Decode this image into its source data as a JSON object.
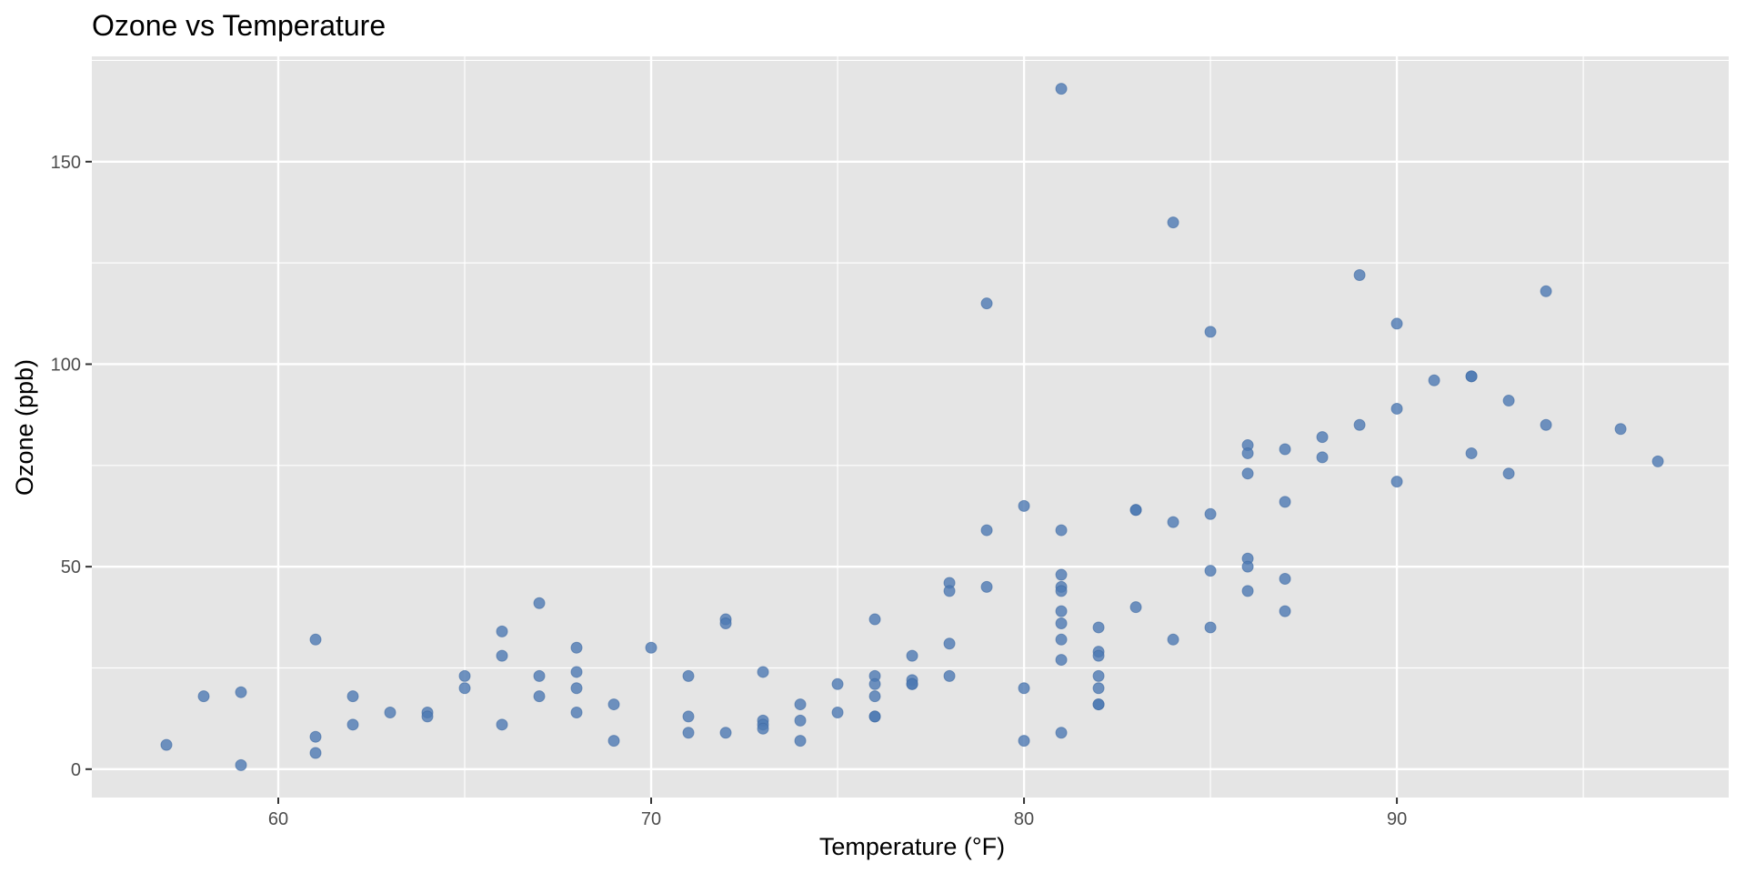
{
  "chart_data": {
    "type": "scatter",
    "title": "Ozone vs Temperature",
    "xlabel": "Temperature (°F)",
    "ylabel": "Ozone (ppb)",
    "xlim": [
      55,
      98.9
    ],
    "ylim": [
      -7,
      176
    ],
    "x_ticks": [
      60,
      70,
      80,
      90
    ],
    "x_tick_labels": [
      "60",
      "70",
      "80",
      "90"
    ],
    "y_ticks": [
      0,
      50,
      100,
      150
    ],
    "y_tick_labels": [
      "0",
      "50",
      "100",
      "150"
    ],
    "grid": true,
    "legend": "none",
    "colors": {
      "point": "#4e79b3",
      "panel": "#e5e5e5",
      "grid": "#ffffff",
      "tick": "#333333"
    },
    "points": [
      [
        57,
        6
      ],
      [
        58,
        18
      ],
      [
        59,
        19
      ],
      [
        59,
        1
      ],
      [
        61,
        32
      ],
      [
        61,
        8
      ],
      [
        61,
        4
      ],
      [
        62,
        18
      ],
      [
        62,
        11
      ],
      [
        63,
        14
      ],
      [
        64,
        14
      ],
      [
        64,
        13
      ],
      [
        65,
        23
      ],
      [
        65,
        20
      ],
      [
        66,
        34
      ],
      [
        66,
        28
      ],
      [
        66,
        11
      ],
      [
        67,
        41
      ],
      [
        67,
        23
      ],
      [
        67,
        18
      ],
      [
        68,
        30
      ],
      [
        68,
        24
      ],
      [
        68,
        20
      ],
      [
        68,
        14
      ],
      [
        69,
        16
      ],
      [
        69,
        7
      ],
      [
        70,
        30
      ],
      [
        71,
        23
      ],
      [
        71,
        13
      ],
      [
        71,
        9
      ],
      [
        72,
        37
      ],
      [
        72,
        36
      ],
      [
        72,
        9
      ],
      [
        73,
        24
      ],
      [
        73,
        12
      ],
      [
        73,
        11
      ],
      [
        73,
        10
      ],
      [
        74,
        16
      ],
      [
        74,
        12
      ],
      [
        74,
        7
      ],
      [
        75,
        21
      ],
      [
        75,
        14
      ],
      [
        76,
        37
      ],
      [
        76,
        23
      ],
      [
        76,
        21
      ],
      [
        76,
        18
      ],
      [
        76,
        13
      ],
      [
        76,
        13
      ],
      [
        77,
        28
      ],
      [
        77,
        22
      ],
      [
        77,
        21
      ],
      [
        77,
        21
      ],
      [
        78,
        46
      ],
      [
        78,
        44
      ],
      [
        78,
        31
      ],
      [
        78,
        23
      ],
      [
        79,
        115
      ],
      [
        79,
        59
      ],
      [
        79,
        45
      ],
      [
        80,
        65
      ],
      [
        80,
        20
      ],
      [
        80,
        7
      ],
      [
        81,
        168
      ],
      [
        81,
        59
      ],
      [
        81,
        48
      ],
      [
        81,
        45
      ],
      [
        81,
        44
      ],
      [
        81,
        39
      ],
      [
        81,
        36
      ],
      [
        81,
        32
      ],
      [
        81,
        27
      ],
      [
        81,
        9
      ],
      [
        82,
        35
      ],
      [
        82,
        29
      ],
      [
        82,
        28
      ],
      [
        82,
        23
      ],
      [
        82,
        20
      ],
      [
        82,
        16
      ],
      [
        82,
        16
      ],
      [
        83,
        64
      ],
      [
        83,
        64
      ],
      [
        83,
        40
      ],
      [
        84,
        135
      ],
      [
        84,
        61
      ],
      [
        84,
        32
      ],
      [
        85,
        108
      ],
      [
        85,
        63
      ],
      [
        85,
        49
      ],
      [
        85,
        35
      ],
      [
        86,
        80
      ],
      [
        86,
        78
      ],
      [
        86,
        73
      ],
      [
        86,
        52
      ],
      [
        86,
        50
      ],
      [
        86,
        44
      ],
      [
        87,
        79
      ],
      [
        87,
        66
      ],
      [
        87,
        47
      ],
      [
        87,
        39
      ],
      [
        88,
        82
      ],
      [
        88,
        77
      ],
      [
        89,
        122
      ],
      [
        89,
        85
      ],
      [
        90,
        110
      ],
      [
        90,
        89
      ],
      [
        90,
        71
      ],
      [
        91,
        96
      ],
      [
        92,
        97
      ],
      [
        92,
        97
      ],
      [
        92,
        78
      ],
      [
        93,
        91
      ],
      [
        93,
        73
      ],
      [
        94,
        118
      ],
      [
        94,
        85
      ],
      [
        96,
        84
      ],
      [
        97,
        76
      ]
    ]
  }
}
